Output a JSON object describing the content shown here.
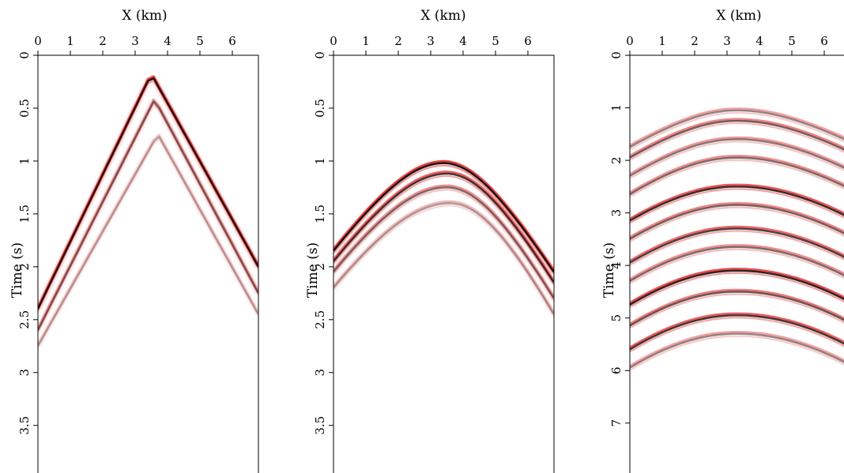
{
  "colors": {
    "positive": "#d81e1e",
    "negative": "#000000",
    "background": "#ffffff"
  },
  "chart_data": [
    {
      "type": "heatmap",
      "xlabel": "X (km)",
      "ylabel": "Time (s)",
      "xlim": [
        0,
        6.8
      ],
      "ylim": [
        0,
        3.95
      ],
      "x_ticks": [
        0,
        1,
        2,
        3,
        4,
        5,
        6
      ],
      "y_ticks": [
        0,
        0.5,
        1,
        1.5,
        2,
        2.5,
        3,
        3.5
      ],
      "y_tick_labels": [
        "0",
        "0.5",
        "1",
        "1.5",
        "2",
        "2.5",
        "3",
        "3.5"
      ],
      "y_reversed": true,
      "events": [
        {
          "kind": "direct-cone",
          "apex_x": 3.5,
          "apex_t": 0.18,
          "edge_t_left": 2.4,
          "edge_t_right": 2.0,
          "strength": 1.0
        },
        {
          "kind": "direct-cone",
          "apex_x": 3.6,
          "apex_t": 0.42,
          "edge_t_left": 2.6,
          "edge_t_right": 2.25,
          "strength": 0.55
        },
        {
          "kind": "direct-cone",
          "apex_x": 3.7,
          "apex_t": 0.75,
          "edge_t_left": 2.75,
          "edge_t_right": 2.45,
          "strength": 0.3
        }
      ]
    },
    {
      "type": "heatmap",
      "xlabel": "X (km)",
      "ylabel": "Time (s)",
      "xlim": [
        0,
        6.8
      ],
      "ylim": [
        0,
        3.95
      ],
      "x_ticks": [
        0,
        1,
        2,
        3,
        4,
        5,
        6
      ],
      "y_ticks": [
        0,
        0.5,
        1,
        1.5,
        2,
        2.5,
        3,
        3.5
      ],
      "y_tick_labels": [
        "0",
        "0.5",
        "1",
        "1.5",
        "2",
        "2.5",
        "3",
        "3.5"
      ],
      "y_reversed": true,
      "events": [
        {
          "kind": "hyperbola",
          "apex_x": 3.4,
          "apex_t": 1.02,
          "edge_t_left": 1.85,
          "edge_t_right": 2.05,
          "strength": 1.0
        },
        {
          "kind": "hyperbola",
          "apex_x": 3.5,
          "apex_t": 1.12,
          "edge_t_left": 1.95,
          "edge_t_right": 2.15,
          "strength": 0.8
        },
        {
          "kind": "hyperbola",
          "apex_x": 3.5,
          "apex_t": 1.25,
          "edge_t_left": 2.05,
          "edge_t_right": 2.3,
          "strength": 0.55
        },
        {
          "kind": "hyperbola",
          "apex_x": 3.6,
          "apex_t": 1.4,
          "edge_t_left": 2.2,
          "edge_t_right": 2.45,
          "strength": 0.35
        }
      ]
    },
    {
      "type": "heatmap",
      "xlabel": "X (km)",
      "ylabel": "Time (s)",
      "xlim": [
        0,
        6.8
      ],
      "ylim": [
        0,
        7.95
      ],
      "x_ticks": [
        0,
        1,
        2,
        3,
        4,
        5,
        6
      ],
      "y_ticks": [
        0,
        1,
        2,
        3,
        4,
        5,
        6,
        7
      ],
      "y_tick_labels": [
        "0",
        "1",
        "2",
        "3",
        "4",
        "5",
        "6",
        "7"
      ],
      "y_reversed": true,
      "events": [
        {
          "kind": "hyperbola",
          "apex_x": 3.3,
          "apex_t": 1.05,
          "edge_t_left": 1.75,
          "edge_t_right": 1.65,
          "strength": 0.45
        },
        {
          "kind": "hyperbola",
          "apex_x": 3.3,
          "apex_t": 1.25,
          "edge_t_left": 1.95,
          "edge_t_right": 1.85,
          "strength": 0.6
        },
        {
          "kind": "hyperbola",
          "apex_x": 3.3,
          "apex_t": 1.6,
          "edge_t_left": 2.3,
          "edge_t_right": 2.2,
          "strength": 0.5
        },
        {
          "kind": "hyperbola",
          "apex_x": 3.3,
          "apex_t": 1.95,
          "edge_t_left": 2.65,
          "edge_t_right": 2.55,
          "strength": 0.55
        },
        {
          "kind": "hyperbola",
          "apex_x": 3.3,
          "apex_t": 2.5,
          "edge_t_left": 3.15,
          "edge_t_right": 3.1,
          "strength": 0.85
        },
        {
          "kind": "hyperbola",
          "apex_x": 3.3,
          "apex_t": 2.85,
          "edge_t_left": 3.5,
          "edge_t_right": 3.45,
          "strength": 0.6
        },
        {
          "kind": "hyperbola",
          "apex_x": 3.3,
          "apex_t": 3.3,
          "edge_t_left": 3.95,
          "edge_t_right": 3.9,
          "strength": 0.75
        },
        {
          "kind": "hyperbola",
          "apex_x": 3.3,
          "apex_t": 3.65,
          "edge_t_left": 4.3,
          "edge_t_right": 4.25,
          "strength": 0.55
        },
        {
          "kind": "hyperbola",
          "apex_x": 3.3,
          "apex_t": 4.1,
          "edge_t_left": 4.75,
          "edge_t_right": 4.7,
          "strength": 0.9
        },
        {
          "kind": "hyperbola",
          "apex_x": 3.3,
          "apex_t": 4.5,
          "edge_t_left": 5.15,
          "edge_t_right": 5.1,
          "strength": 0.65
        },
        {
          "kind": "hyperbola",
          "apex_x": 3.3,
          "apex_t": 4.95,
          "edge_t_left": 5.6,
          "edge_t_right": 5.55,
          "strength": 0.8
        },
        {
          "kind": "hyperbola",
          "apex_x": 3.3,
          "apex_t": 5.3,
          "edge_t_left": 5.95,
          "edge_t_right": 5.9,
          "strength": 0.45
        }
      ]
    }
  ]
}
